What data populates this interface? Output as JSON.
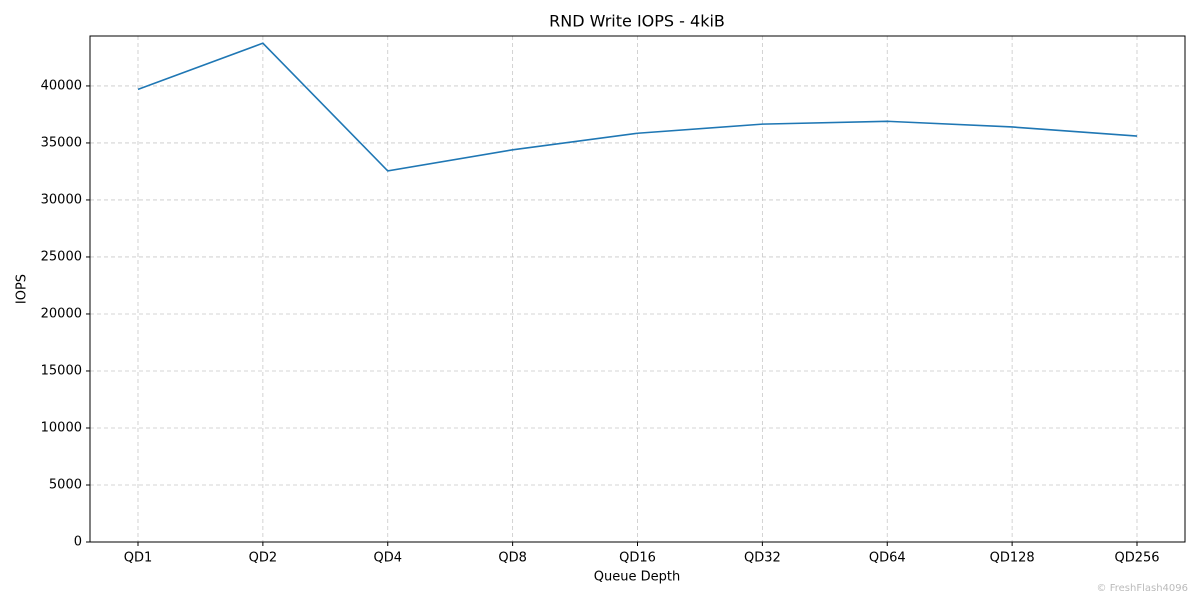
{
  "chart_data": {
    "type": "line",
    "title": "RND Write IOPS - 4kiB",
    "x_label": "Queue Depth",
    "y_label": "IOPS",
    "categories": [
      "QD1",
      "QD2",
      "QD4",
      "QD8",
      "QD16",
      "QD32",
      "QD64",
      "QD128",
      "QD256"
    ],
    "series": [
      {
        "name": "IOPS",
        "color": "#1f77b4",
        "values": [
          39700,
          43750,
          32550,
          34400,
          35850,
          36650,
          36900,
          36400,
          35600
        ]
      }
    ],
    "ylim": [
      0,
      44380
    ],
    "yticks": [
      0,
      5000,
      10000,
      15000,
      20000,
      25000,
      30000,
      35000,
      40000
    ],
    "grid": true,
    "watermark": "© FreshFlash4096"
  }
}
